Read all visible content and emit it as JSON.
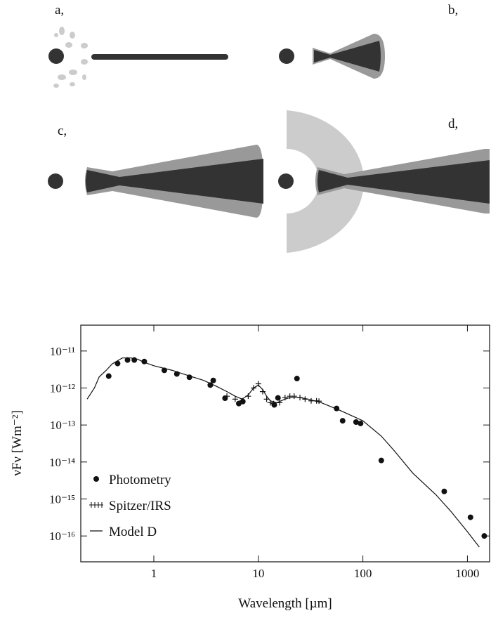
{
  "panels": [
    "a,",
    "b,",
    "c,",
    "d,"
  ],
  "chart_data": {
    "type": "scatter-line",
    "xlabel": "Wavelength [µm]",
    "ylabel": "νFν [Wm⁻²]",
    "xscale": "log",
    "yscale": "log",
    "xlim": [
      0.2,
      1630
    ],
    "ylim": [
      2e-17,
      5e-11
    ],
    "xticks": [
      1,
      10,
      100,
      1000
    ],
    "yticks": [
      {
        "value": 1e-16,
        "label": "10⁻¹⁶"
      },
      {
        "value": 1e-15,
        "label": "10⁻¹⁵"
      },
      {
        "value": 1e-14,
        "label": "10⁻¹⁴"
      },
      {
        "value": 1e-13,
        "label": "10⁻¹³"
      },
      {
        "value": 1e-12,
        "label": "10⁻¹²"
      },
      {
        "value": 1e-11,
        "label": "10⁻¹¹"
      }
    ],
    "legend": "lower left",
    "series": [
      {
        "name": "Photometry",
        "marker": "dot",
        "color": "#111",
        "x": [
          0.37,
          0.45,
          0.56,
          0.65,
          0.81,
          1.26,
          1.66,
          2.19,
          3.47,
          3.7,
          4.8,
          6.5,
          7.1,
          14.2,
          15.4,
          23.4,
          56,
          64,
          86,
          95,
          150,
          600,
          1070,
          1450
        ],
        "values": [
          2.1e-12,
          4.6e-12,
          5.7e-12,
          5.7e-12,
          5.2e-12,
          3e-12,
          2.4e-12,
          1.95e-12,
          1.2e-12,
          1.6e-12,
          5.3e-13,
          3.8e-13,
          4.3e-13,
          3.5e-13,
          5.4e-13,
          1.8e-12,
          2.8e-13,
          1.3e-13,
          1.2e-13,
          1.1e-13,
          1.1e-14,
          1.6e-15,
          3.2e-16,
          1e-16
        ]
      },
      {
        "name": "Spitzer/IRS",
        "marker": "cross",
        "color": "#111",
        "x": [
          5,
          6,
          7,
          8,
          9,
          10,
          11,
          12,
          13,
          14,
          16,
          18,
          20,
          22,
          25,
          28,
          32,
          36,
          38
        ],
        "values": [
          6e-13,
          5e-13,
          4.5e-13,
          6e-13,
          1e-12,
          1.3e-12,
          8e-13,
          5e-13,
          4e-13,
          3.8e-13,
          4e-13,
          5.5e-13,
          6e-13,
          6e-13,
          5.5e-13,
          5e-13,
          4.5e-13,
          4.5e-13,
          4.4e-13
        ]
      },
      {
        "name": "Model D",
        "marker": "line",
        "color": "#111",
        "x": [
          0.23,
          0.27,
          0.3,
          0.35,
          0.4,
          0.5,
          0.6,
          0.7,
          0.8,
          1,
          1.5,
          2,
          3,
          4,
          5,
          6,
          7,
          8,
          9,
          10,
          11,
          12,
          13,
          15,
          18,
          20,
          25,
          30,
          40,
          60,
          100,
          150,
          200,
          300,
          500,
          700,
          1000,
          1300
        ],
        "values": [
          5e-13,
          1e-12,
          2e-12,
          3e-12,
          4.5e-12,
          6.5e-12,
          6.5e-12,
          6e-12,
          5e-12,
          4e-12,
          3e-12,
          2.3e-12,
          1.6e-12,
          1.1e-12,
          8e-13,
          6e-13,
          5e-13,
          6.5e-13,
          1e-12,
          1.2e-12,
          9e-13,
          6e-13,
          4.5e-13,
          4e-13,
          5e-13,
          5.5e-13,
          5.5e-13,
          5e-13,
          4e-13,
          2.5e-13,
          1.3e-13,
          5e-14,
          2e-14,
          5e-15,
          1.3e-15,
          4.5e-16,
          1.3e-16,
          5e-17
        ]
      }
    ]
  }
}
